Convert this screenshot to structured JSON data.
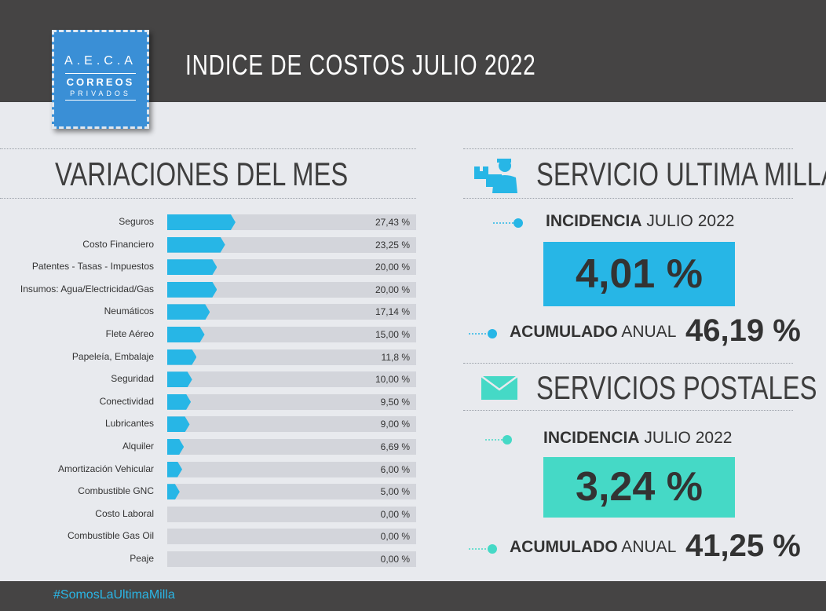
{
  "header": {
    "title": "INDICE DE COSTOS JULIO 2022",
    "logo": {
      "line1": "A.E.C.A",
      "line2": "CORREOS",
      "line3": "PRIVADOS"
    }
  },
  "variaciones": {
    "title": "VARIACIONES DEL MES"
  },
  "chart_data": {
    "type": "bar",
    "orientation": "horizontal",
    "title": "VARIACIONES DEL MES",
    "categories": [
      "Seguros",
      "Costo Financiero",
      "Patentes - Tasas - Impuestos",
      "Insumos: Agua/Electricidad/Gas",
      "Neumáticos",
      "Flete Aéreo",
      "Papeleía, Embalaje",
      "Seguridad",
      "Conectividad",
      "Lubricantes",
      "Alquiler",
      "Amortización Vehicular",
      "Combustible GNC",
      "Costo Laboral",
      "Combustible Gas Oil",
      "Peaje"
    ],
    "values": [
      27.43,
      23.25,
      20.0,
      20.0,
      17.14,
      15.0,
      11.8,
      10.0,
      9.5,
      9.0,
      6.69,
      6.0,
      5.0,
      0.0,
      0.0,
      0.0
    ],
    "value_labels": [
      "27,43 %",
      "23,25 %",
      "20,00 %",
      "20,00 %",
      "17,14 %",
      "15,00 %",
      "11,8 %",
      "10,00 %",
      "9,50 %",
      "9,00 %",
      "6,69 %",
      "6,00 %",
      "5,00 %",
      "0,00 %",
      "0,00 %",
      "0,00 %"
    ],
    "xlim": [
      0,
      100
    ],
    "bar_color": "#27b6e6",
    "track_color": "#d3d5db"
  },
  "ultima_milla": {
    "title": "SERVICIO ULTIMA MILLA",
    "icon": "delivery-person-icon",
    "incidencia_bold": "INCIDENCIA",
    "incidencia_rest": "JULIO 2022",
    "incidencia_value": "4,01 %",
    "acumulado_bold": "ACUMULADO",
    "acumulado_rest": "ANUAL",
    "acumulado_value": "46,19 %",
    "color": "#27b6e6"
  },
  "postales": {
    "title": "SERVICIOS POSTALES",
    "icon": "envelope-icon",
    "incidencia_bold": "INCIDENCIA",
    "incidencia_rest": "JULIO 2022",
    "incidencia_value": "3,24 %",
    "acumulado_bold": "ACUMULADO",
    "acumulado_rest": "ANUAL",
    "acumulado_value": "41,25 %",
    "color": "#45d9c6"
  },
  "footer": {
    "hashtag": "#SomosLaUltimaMilla"
  }
}
